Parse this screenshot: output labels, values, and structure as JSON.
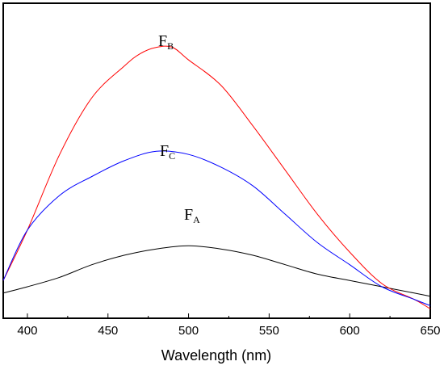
{
  "chart_data": {
    "type": "line",
    "title": "",
    "xlabel": "Wavelength (nm)",
    "ylabel": "",
    "xlim": [
      385,
      650
    ],
    "ylim": [
      0,
      1
    ],
    "x_ticks": [
      400,
      450,
      500,
      550,
      600,
      650
    ],
    "grid": false,
    "legend": "none",
    "series": [
      {
        "name": "FA",
        "label_main": "F",
        "label_sub": "A",
        "color": "#000000",
        "x": [
          385,
          400,
          420,
          440,
          460,
          480,
          500,
          520,
          540,
          560,
          580,
          600,
          620,
          640,
          650
        ],
        "y": [
          0.08,
          0.1,
          0.13,
          0.17,
          0.2,
          0.22,
          0.23,
          0.22,
          0.2,
          0.17,
          0.14,
          0.12,
          0.1,
          0.08,
          0.07
        ]
      },
      {
        "name": "FB",
        "label_main": "F",
        "label_sub": "B",
        "color": "#ff0000",
        "x": [
          385,
          400,
          420,
          440,
          460,
          470,
          480,
          490,
          500,
          520,
          540,
          560,
          580,
          600,
          620,
          640,
          650
        ],
        "y": [
          0.12,
          0.28,
          0.52,
          0.7,
          0.8,
          0.84,
          0.86,
          0.86,
          0.82,
          0.74,
          0.61,
          0.47,
          0.33,
          0.21,
          0.11,
          0.06,
          0.03
        ]
      },
      {
        "name": "FC",
        "label_main": "F",
        "label_sub": "C",
        "color": "#0000ff",
        "x": [
          385,
          400,
          420,
          440,
          460,
          480,
          500,
          520,
          540,
          560,
          580,
          600,
          620,
          640,
          650
        ],
        "y": [
          0.12,
          0.28,
          0.39,
          0.45,
          0.5,
          0.53,
          0.52,
          0.48,
          0.42,
          0.33,
          0.24,
          0.17,
          0.1,
          0.06,
          0.04
        ]
      }
    ]
  }
}
